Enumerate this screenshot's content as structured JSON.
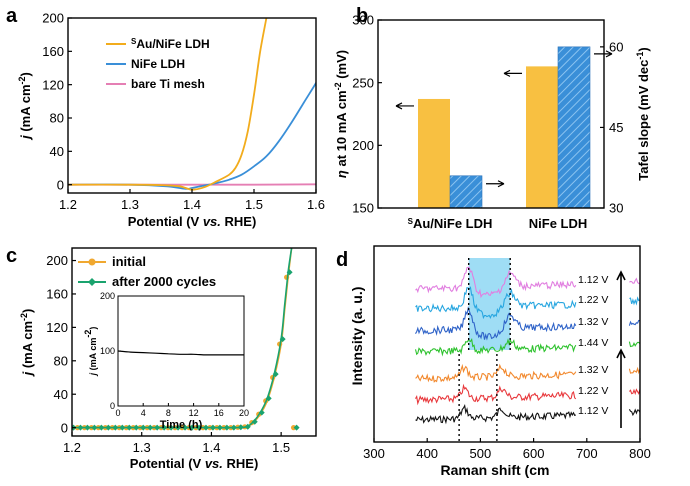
{
  "chart_data": [
    {
      "panel": "a",
      "type": "line",
      "xlabel_parts": [
        "Potential (V ",
        "vs.",
        " RHE)"
      ],
      "ylabel_parts": [
        "j",
        " (mA cm",
        "-2",
        ")"
      ],
      "xlim": [
        1.2,
        1.6
      ],
      "ylim": [
        -10,
        200
      ],
      "xticks": [
        "1.2",
        "1.3",
        "1.4",
        "1.5",
        "1.6"
      ],
      "yticks": [
        "0",
        "40",
        "80",
        "120",
        "160",
        "200"
      ],
      "legend_position": "top-right",
      "series": [
        {
          "name": "Au/NiFe LDH",
          "name_sup": "S",
          "color": "#f2ac1c",
          "x": [
            1.2,
            1.3,
            1.35,
            1.38,
            1.4,
            1.42,
            1.44,
            1.46,
            1.47,
            1.48,
            1.49,
            1.5,
            1.51,
            1.52
          ],
          "y": [
            0,
            0,
            -0.5,
            -2,
            -6,
            -3,
            4,
            12,
            20,
            36,
            64,
            108,
            160,
            200
          ]
        },
        {
          "name": "NiFe LDH",
          "color": "#3a8fd8",
          "x": [
            1.2,
            1.3,
            1.36,
            1.39,
            1.4,
            1.42,
            1.44,
            1.46,
            1.48,
            1.5,
            1.52,
            1.54,
            1.56,
            1.58,
            1.6,
            1.61
          ],
          "y": [
            0,
            0,
            -2,
            -5,
            -4,
            -1,
            2,
            6,
            12,
            22,
            34,
            52,
            74,
            98,
            122,
            136
          ]
        },
        {
          "name": "bare Ti mesh",
          "color": "#e57fb4",
          "x": [
            1.2,
            1.3,
            1.4,
            1.5,
            1.6,
            1.61
          ],
          "y": [
            0,
            0,
            0,
            0,
            0.5,
            0.5
          ]
        }
      ]
    },
    {
      "panel": "b",
      "type": "bar",
      "categories": [
        "Au/NiFe LDH",
        "NiFe LDH"
      ],
      "category_sups": [
        "S",
        ""
      ],
      "ylabel_left_parts": [
        "η",
        " at 10 mA cm",
        "-2",
        " (mV)"
      ],
      "ylabel_right_parts": [
        "Tafel slope (mV dec",
        "-1",
        ")"
      ],
      "ylim_left": [
        150,
        300
      ],
      "ylim_right": [
        30,
        65
      ],
      "yticks_left": [
        "150",
        "200",
        "250",
        "300"
      ],
      "yticks_right": [
        "30",
        "45",
        "60"
      ],
      "series": [
        {
          "axis": "left",
          "color": "#f8c041",
          "values": [
            237,
            263
          ]
        },
        {
          "axis": "right",
          "color": "#3a8fd8",
          "hatched": true,
          "values": [
            36,
            60
          ]
        }
      ]
    },
    {
      "panel": "c",
      "type": "line",
      "xlabel_parts": [
        "Potential (V ",
        "vs.",
        " RHE)"
      ],
      "ylabel_parts": [
        "j",
        " (mA cm",
        "-2",
        ")"
      ],
      "xlim": [
        1.2,
        1.55
      ],
      "ylim": [
        -10,
        215
      ],
      "xticks": [
        "1.2",
        "1.3",
        "1.4",
        "1.5"
      ],
      "yticks": [
        "0",
        "40",
        "80",
        "120",
        "160",
        "200"
      ],
      "legend_position": "top-left",
      "series": [
        {
          "name": "initial",
          "color": "#f0a830",
          "marker": "circle",
          "x": [
            1.2,
            1.25,
            1.3,
            1.35,
            1.4,
            1.43,
            1.45,
            1.46,
            1.47,
            1.48,
            1.49,
            1.5,
            1.505,
            1.51,
            1.515
          ],
          "y": [
            0,
            0,
            0,
            0,
            0,
            0,
            1,
            6,
            16,
            32,
            60,
            100,
            140,
            180,
            215
          ]
        },
        {
          "name": "after 2000 cycles",
          "color": "#1aa36e",
          "marker": "diamond",
          "x": [
            1.2,
            1.25,
            1.3,
            1.35,
            1.4,
            1.43,
            1.45,
            1.46,
            1.47,
            1.48,
            1.49,
            1.5,
            1.505,
            1.51,
            1.515
          ],
          "y": [
            0,
            0,
            0,
            0,
            0,
            0,
            1,
            7,
            18,
            35,
            64,
            106,
            146,
            186,
            215
          ]
        }
      ],
      "inset": {
        "type": "line",
        "xlabel": "Time (h)",
        "ylabel_parts": [
          "j",
          " (mA cm",
          "-2",
          ")"
        ],
        "xlim": [
          0,
          20
        ],
        "ylim": [
          0,
          200
        ],
        "xticks": [
          "0",
          "4",
          "8",
          "12",
          "16",
          "20"
        ],
        "yticks": [
          "0",
          "100",
          "200"
        ],
        "x": [
          0,
          2,
          4,
          6,
          8,
          10,
          12,
          14,
          16,
          18,
          20
        ],
        "y": [
          100,
          98,
          97,
          96,
          95,
          94,
          94,
          93,
          93,
          93,
          93
        ]
      }
    },
    {
      "panel": "d",
      "type": "line",
      "xlabel": "Raman shift (cm",
      "ylabel": "Intensity (a. u.)",
      "xlim": [
        300,
        800
      ],
      "xticks": [
        "300",
        "400",
        "500",
        "600",
        "700",
        "800"
      ],
      "peaks_dashed": [
        460,
        531
      ],
      "shaded_region": [
        478,
        556
      ],
      "series": [
        {
          "label": "1.12 V",
          "color": "#111111"
        },
        {
          "label": "1.22 V",
          "color": "#e8383c"
        },
        {
          "label": "1.32 V",
          "color": "#f2892e"
        },
        {
          "label": "1.44 V",
          "color": "#2ec22e"
        },
        {
          "label": "1.32 V",
          "color": "#2f63c8"
        },
        {
          "label": "1.22 V",
          "color": "#27a6e0"
        },
        {
          "label": "1.12 V",
          "color": "#e17fe0"
        }
      ]
    }
  ],
  "panel_labels": {
    "a": "a",
    "b": "b",
    "c": "c",
    "d": "d"
  }
}
